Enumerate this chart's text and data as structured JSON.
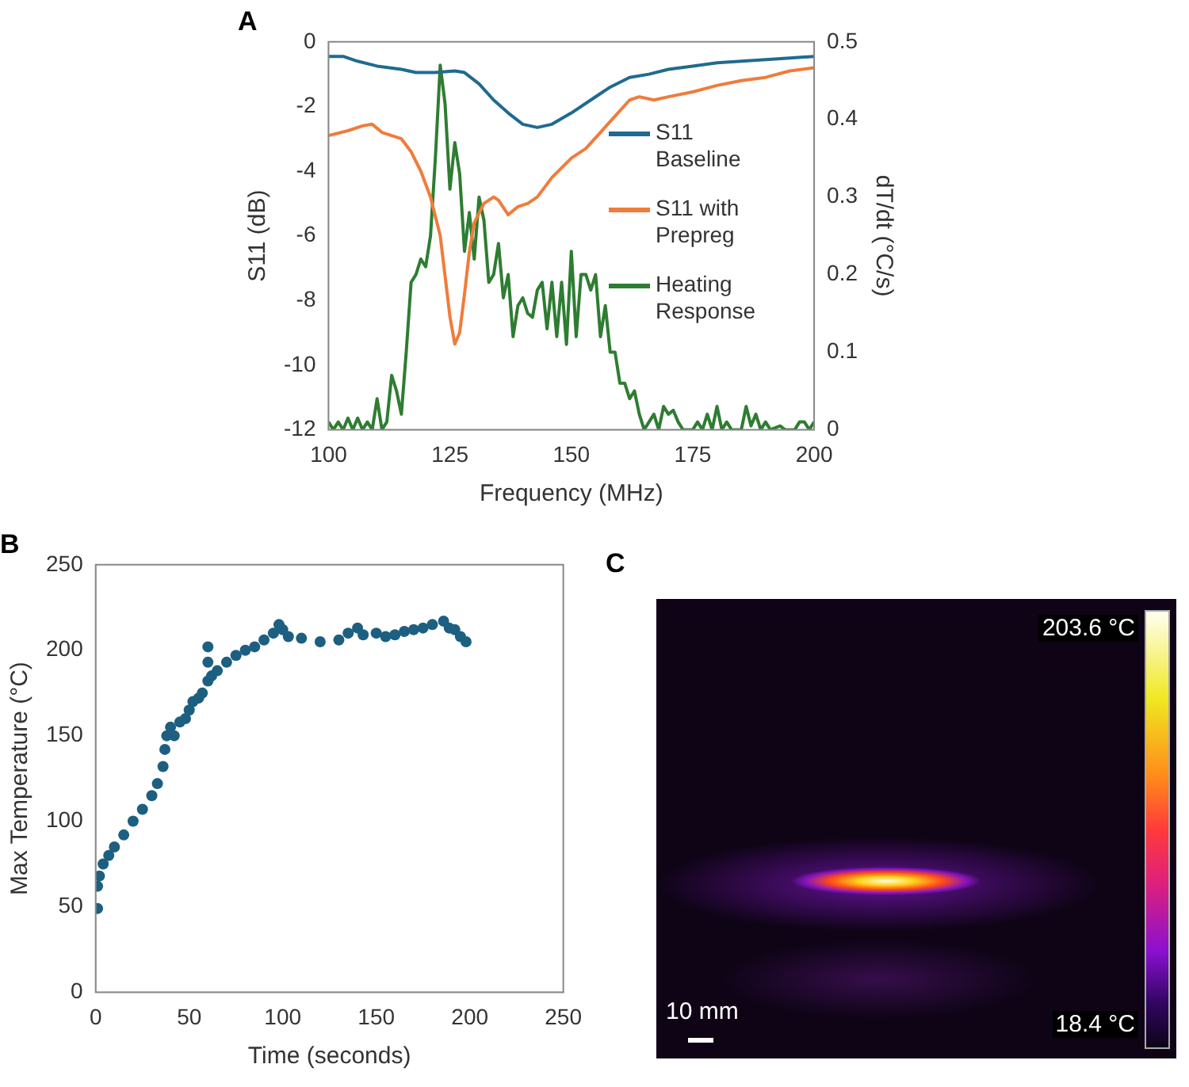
{
  "chart_data": [
    {
      "type": "line",
      "title": "A",
      "xlabel": "Frequency (MHz)",
      "ylabel": "S11 (dB)",
      "y2label": "dT/dt (°C/s)",
      "xlim": [
        100,
        200
      ],
      "xticks": [
        100,
        125,
        150,
        175,
        200
      ],
      "ylim": [
        -12,
        0
      ],
      "yticks": [
        -12,
        -10,
        -8,
        -6,
        -4,
        -2,
        0
      ],
      "y2lim": [
        0,
        0.5
      ],
      "y2ticks": [
        0,
        0.1,
        0.2,
        0.3,
        0.4,
        0.5
      ],
      "grid": false,
      "legend": "right",
      "marker": "none",
      "line_style": "solid",
      "series": [
        {
          "name": "S11 Baseline",
          "color": "#1f6b8f",
          "x": [
            100,
            103,
            106,
            110,
            115,
            118,
            122,
            126,
            128,
            131,
            134,
            137,
            140,
            143,
            146,
            150,
            154,
            158,
            162,
            166,
            170,
            175,
            180,
            185,
            190,
            195,
            200
          ],
          "values": [
            -0.45,
            -0.45,
            -0.6,
            -0.75,
            -0.85,
            -0.95,
            -0.95,
            -0.9,
            -0.95,
            -1.3,
            -1.8,
            -2.2,
            -2.55,
            -2.65,
            -2.55,
            -2.2,
            -1.8,
            -1.4,
            -1.1,
            -1.0,
            -0.85,
            -0.75,
            -0.65,
            -0.6,
            -0.55,
            -0.5,
            -0.45
          ]
        },
        {
          "name": "S11 with Prepreg",
          "color": "#f07c3a",
          "x": [
            100,
            104,
            107,
            109,
            111,
            115,
            117,
            119,
            121,
            123,
            125,
            126,
            127,
            128,
            129,
            130,
            132,
            134,
            135,
            137,
            139,
            141,
            143,
            146,
            150,
            153,
            156,
            159,
            162,
            164,
            167,
            170,
            175,
            180,
            185,
            190,
            195,
            200
          ],
          "values": [
            -2.9,
            -2.75,
            -2.6,
            -2.55,
            -2.8,
            -3.0,
            -3.4,
            -4.0,
            -4.8,
            -6.0,
            -8.5,
            -9.35,
            -9.0,
            -7.8,
            -6.5,
            -5.6,
            -5.0,
            -4.8,
            -4.9,
            -5.35,
            -5.1,
            -5.0,
            -4.8,
            -4.2,
            -3.6,
            -3.3,
            -2.8,
            -2.3,
            -1.8,
            -1.7,
            -1.8,
            -1.7,
            -1.55,
            -1.35,
            -1.2,
            -1.1,
            -0.9,
            -0.8
          ]
        },
        {
          "name": "Heating Response",
          "color": "#2e7d32",
          "axis": "y2",
          "x": [
            100,
            101,
            102,
            103,
            104,
            105,
            106,
            107,
            108,
            109,
            110,
            111,
            112,
            113,
            114,
            115,
            116,
            117,
            118,
            119,
            120,
            121,
            122,
            123,
            124,
            125,
            126,
            127,
            128,
            129,
            130,
            131,
            132,
            133,
            134,
            135,
            136,
            137,
            138,
            139,
            140,
            141,
            142,
            143,
            144,
            145,
            146,
            147,
            148,
            149,
            150,
            151,
            152,
            153,
            154,
            155,
            156,
            157,
            158,
            159,
            160,
            161,
            162,
            163,
            164,
            165,
            166,
            167,
            168,
            169,
            170,
            171,
            172,
            173,
            175,
            176,
            177,
            178,
            179,
            180,
            181,
            182,
            183,
            185,
            186,
            187,
            188,
            189,
            190,
            191,
            193,
            194,
            196,
            197,
            198,
            199,
            200
          ],
          "values": [
            0.01,
            0,
            0.01,
            0,
            0.015,
            0,
            0.015,
            0,
            0.01,
            0,
            0.04,
            0,
            0.01,
            0.07,
            0.05,
            0.02,
            0.1,
            0.19,
            0.2,
            0.22,
            0.21,
            0.25,
            0.35,
            0.47,
            0.42,
            0.31,
            0.37,
            0.33,
            0.23,
            0.28,
            0.22,
            0.3,
            0.27,
            0.19,
            0.2,
            0.24,
            0.17,
            0.2,
            0.12,
            0.16,
            0.17,
            0.15,
            0.145,
            0.18,
            0.19,
            0.13,
            0.19,
            0.12,
            0.19,
            0.11,
            0.23,
            0.12,
            0.2,
            0.2,
            0.18,
            0.2,
            0.12,
            0.16,
            0.1,
            0.1,
            0.06,
            0.06,
            0.04,
            0.05,
            0.02,
            0,
            0.01,
            0.02,
            0,
            0.03,
            0.02,
            0.025,
            0.01,
            0,
            0,
            0.01,
            0,
            0.02,
            0,
            0.03,
            0,
            0.01,
            0,
            0,
            0.03,
            0.005,
            0.02,
            0,
            0.01,
            0,
            0.005,
            0,
            0,
            0.01,
            0.01,
            0,
            0.01
          ]
        }
      ]
    },
    {
      "type": "scatter",
      "title": "B",
      "xlabel": "Time (seconds)",
      "ylabel": "Max Temperature (°C)",
      "xlim": [
        0,
        250
      ],
      "xticks": [
        0,
        50,
        100,
        150,
        200,
        250
      ],
      "ylim": [
        0,
        250
      ],
      "yticks": [
        0,
        50,
        100,
        150,
        200,
        250
      ],
      "grid": false,
      "marker": "circle",
      "series": [
        {
          "color": "#1d5f80",
          "x": [
            1,
            1,
            2,
            4,
            7,
            10,
            15,
            20,
            25,
            30,
            33,
            36,
            37,
            38,
            40,
            42,
            45,
            48,
            50,
            52,
            55,
            57,
            60,
            60,
            60,
            62,
            65,
            70,
            75,
            80,
            85,
            90,
            95,
            98,
            100,
            103,
            110,
            120,
            130,
            135,
            140,
            143,
            150,
            155,
            160,
            165,
            170,
            175,
            180,
            186,
            189,
            192,
            195,
            198
          ],
          "values": [
            49,
            62,
            68,
            75,
            80,
            85,
            92,
            100,
            107,
            115,
            122,
            132,
            142,
            150,
            155,
            150,
            158,
            160,
            165,
            170,
            172,
            175,
            182,
            193,
            202,
            185,
            188,
            193,
            197,
            200,
            202,
            206,
            210,
            215,
            212,
            208,
            207,
            205,
            206,
            210,
            213,
            209,
            210,
            208,
            209,
            211,
            212,
            213,
            215,
            217,
            213,
            212,
            208,
            205
          ]
        }
      ]
    },
    {
      "type": "other",
      "title": "C",
      "annotations": [
        "203.6 °C",
        "18.4 °C",
        "10 mm"
      ]
    }
  ]
}
